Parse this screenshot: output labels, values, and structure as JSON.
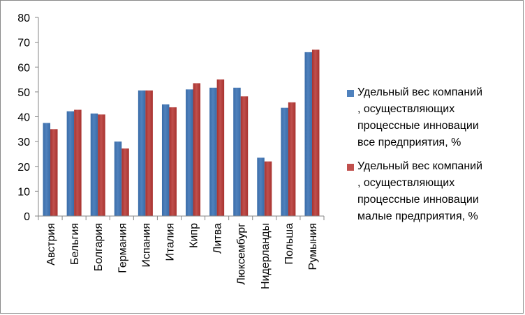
{
  "chart_data": {
    "type": "bar",
    "title": "",
    "xlabel": "",
    "ylabel": "",
    "ylim": [
      0,
      80
    ],
    "yticks": [
      0,
      10,
      20,
      30,
      40,
      50,
      60,
      70,
      80
    ],
    "grid": false,
    "legend_position": "right",
    "categories": [
      "Австрия",
      "Бельгия",
      "Болгария",
      "Германия",
      "Испания",
      "Италия",
      "Кипр",
      "Литва",
      "Люксембург",
      "Нидерланды",
      "Польша",
      "Румыния"
    ],
    "series": [
      {
        "name": "Удельный вес компаний\n, осуществляющих\nпроцессные инновации\nвсе предприятия, %",
        "color": "#4F81BD",
        "values": [
          37.5,
          42.2,
          41.3,
          30.0,
          50.6,
          45.0,
          51.0,
          51.7,
          51.7,
          23.5,
          43.6,
          66.0
        ]
      },
      {
        "name": "Удельный вес компаний\n, осуществляющих\nпроцессные инновации\nмалые предприятия, %",
        "color": "#C0504D",
        "values": [
          35.0,
          42.8,
          40.9,
          27.2,
          50.6,
          43.8,
          53.5,
          55.0,
          48.2,
          22.0,
          45.8,
          67.0
        ]
      }
    ]
  }
}
